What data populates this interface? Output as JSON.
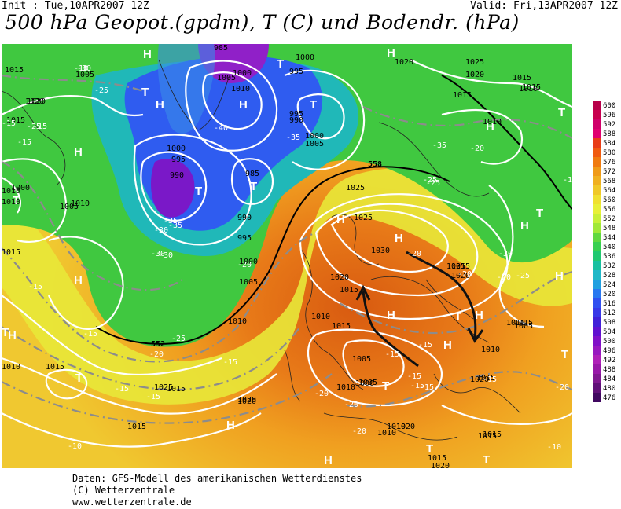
{
  "header": {
    "init": "Init : Tue,10APR2007 12Z",
    "valid": "Valid: Fri,13APR2007 12Z",
    "title": "500 hPa Geopot.(gpdm), T (C) und Bodendr. (hPa)"
  },
  "legend": {
    "levels": [
      "600",
      "596",
      "592",
      "588",
      "584",
      "580",
      "576",
      "572",
      "568",
      "564",
      "560",
      "556",
      "552",
      "548",
      "544",
      "540",
      "536",
      "532",
      "528",
      "524",
      "520",
      "516",
      "512",
      "508",
      "504",
      "500",
      "496",
      "492",
      "488",
      "484",
      "480",
      "476"
    ],
    "colors": [
      "#b8004a",
      "#c8004f",
      "#d0006a",
      "#e00070",
      "#e83c18",
      "#f05a10",
      "#f07a10",
      "#f09a18",
      "#f0b020",
      "#f0c828",
      "#f0e030",
      "#e8f038",
      "#c8f038",
      "#a0e838",
      "#60d840",
      "#38d050",
      "#20c870",
      "#18c0a0",
      "#20b8c8",
      "#20a0e0",
      "#2878f0",
      "#3050f0",
      "#3838e8",
      "#4020d8",
      "#6010d0",
      "#8010c8",
      "#9818c0",
      "#b020b8",
      "#9818a8",
      "#801890",
      "#601078",
      "#400860"
    ]
  },
  "map": {
    "highs": [
      "H",
      "H",
      "H",
      "H",
      "H",
      "H",
      "H",
      "H",
      "H",
      "H",
      "H",
      "H",
      "H",
      "H",
      "H",
      "H",
      "H"
    ],
    "lows": [
      "T",
      "T",
      "T",
      "T",
      "T",
      "T",
      "T",
      "T",
      "T",
      "T",
      "T",
      "T",
      "T",
      "T",
      "T"
    ],
    "pressure_labels": [
      "985",
      "1000",
      "995",
      "1005",
      "1010",
      "1000",
      "995",
      "990",
      "1000",
      "1005",
      "1000",
      "995",
      "990",
      "985",
      "990",
      "995",
      "1000",
      "1005",
      "1010",
      "1015",
      "1020",
      "1025",
      "1030",
      "1025",
      "1020",
      "1015",
      "1010",
      "1005",
      "1000",
      "1010",
      "1015",
      "1020",
      "1025",
      "1015",
      "1010",
      "1015",
      "1020",
      "1010",
      "1015",
      "1020",
      "1005",
      "1010",
      "1015",
      "1020",
      "1015",
      "1010",
      "1005",
      "1010",
      "1015",
      "1020",
      "1015",
      "1010",
      "1000",
      "1005",
      "1010",
      "1015",
      "1020",
      "1025",
      "1015",
      "1010",
      "1005",
      "1015",
      "1020",
      "1015",
      "1010",
      "1015",
      "1025",
      "1020",
      "1015",
      "1010",
      "1020",
      "1015"
    ],
    "temp_labels": [
      "-30",
      "-25",
      "-25",
      "-30",
      "-35",
      "-35",
      "-40",
      "-35",
      "-30",
      "-30",
      "-35",
      "-25",
      "-20",
      "-20",
      "-25",
      "-15",
      "-15",
      "-20",
      "-15",
      "-15",
      "-10",
      "-15",
      "-20",
      "-15",
      "-15",
      "-10",
      "-20",
      "-15",
      "-20",
      "-15",
      "-15",
      "-15",
      "-20",
      "-20",
      "-20",
      "-25",
      "-30",
      "-25",
      "-20",
      "-15",
      "-15",
      "-15",
      "-10",
      "-15"
    ],
    "contour_552": "552",
    "contour_558": "558"
  },
  "footer": {
    "line1": "Daten: GFS-Modell des amerikanischen Wetterdienstes",
    "line2": "(C) Wetterzentrale",
    "line3": "www.wetterzentrale.de"
  }
}
